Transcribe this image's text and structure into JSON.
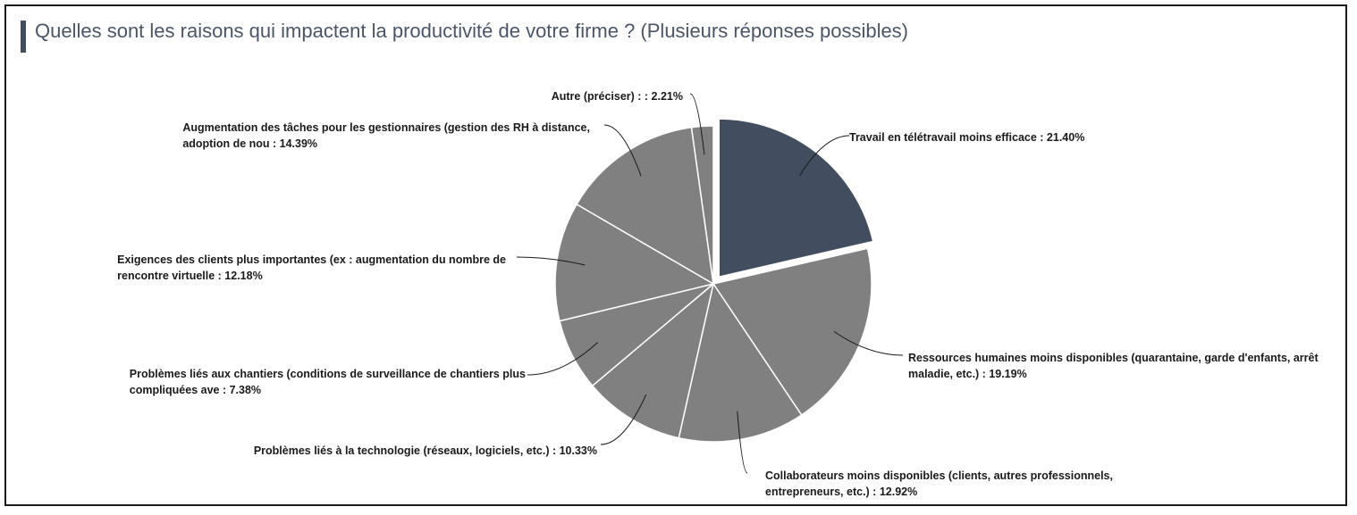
{
  "title": "Quelles sont les raisons qui impactent la productivité de votre firme ? (Plusieurs réponses possibles)",
  "colors": {
    "highlight": "#424e60",
    "slice": "#808080",
    "title_bar": "#424e60",
    "title_text": "#4a5668"
  },
  "chart_data": {
    "type": "pie",
    "title": "Quelles sont les raisons qui impactent la productivité de votre firme ? (Plusieurs réponses possibles)",
    "slices": [
      {
        "label": [
          "Travail en télétravail moins efficace : 21.40%"
        ],
        "value": 21.4,
        "highlight": true
      },
      {
        "label": [
          "Ressources humaines moins disponibles (quarantaine, garde d'enfants, arrêt",
          "maladie, etc.) : 19.19%"
        ],
        "value": 19.19
      },
      {
        "label": [
          "Collaborateurs moins disponibles (clients, autres professionnels,",
          "entrepreneurs, etc.)  : 12.92%"
        ],
        "value": 12.92
      },
      {
        "label": [
          "Problèmes liés à la technologie (réseaux, logiciels, etc.) : 10.33%"
        ],
        "value": 10.33
      },
      {
        "label": [
          "Problèmes liés aux chantiers (conditions de surveillance de chantiers plus",
          "compliquées ave : 7.38%"
        ],
        "value": 7.38
      },
      {
        "label": [
          "Exigences des clients plus importantes (ex : augmentation du nombre de",
          "rencontre virtuelle : 12.18%"
        ],
        "value": 12.18
      },
      {
        "label": [
          "Augmentation des tâches pour les gestionnaires (gestion des RH à distance,",
          "adoption de nou : 14.39%"
        ],
        "value": 14.39
      },
      {
        "label": [
          "Autre (préciser) :  : 2.21%"
        ],
        "value": 2.21
      }
    ]
  }
}
